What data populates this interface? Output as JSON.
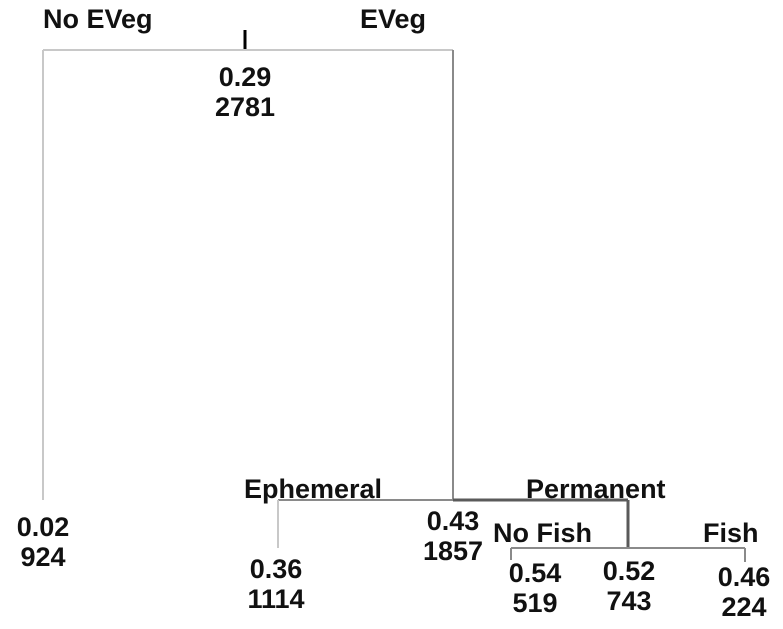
{
  "tree": {
    "root": {
      "mean": "0.29",
      "n": "2781",
      "left_split_label": "No EVeg",
      "right_split_label": "EVeg"
    },
    "node_no_eveg": {
      "mean": "0.02",
      "n": "924"
    },
    "node_eveg": {
      "mean": "0.43",
      "n": "1857",
      "left_split_label": "Ephemeral",
      "right_split_label": "Permanent"
    },
    "node_ephemeral": {
      "mean": "0.36",
      "n": "1114"
    },
    "node_permanent": {
      "mean": "0.52",
      "n": "743",
      "left_split_label": "No Fish",
      "right_split_label": "Fish"
    },
    "node_no_fish": {
      "mean": "0.54",
      "n": "519"
    },
    "node_fish": {
      "mean": "0.46",
      "n": "224"
    }
  },
  "colors": {
    "branch_light": "#c8c8c8",
    "branch_mid": "#8a8a8a",
    "branch_dark": "#5a5a5a",
    "root_tick": "#000000",
    "text": "#111111"
  }
}
